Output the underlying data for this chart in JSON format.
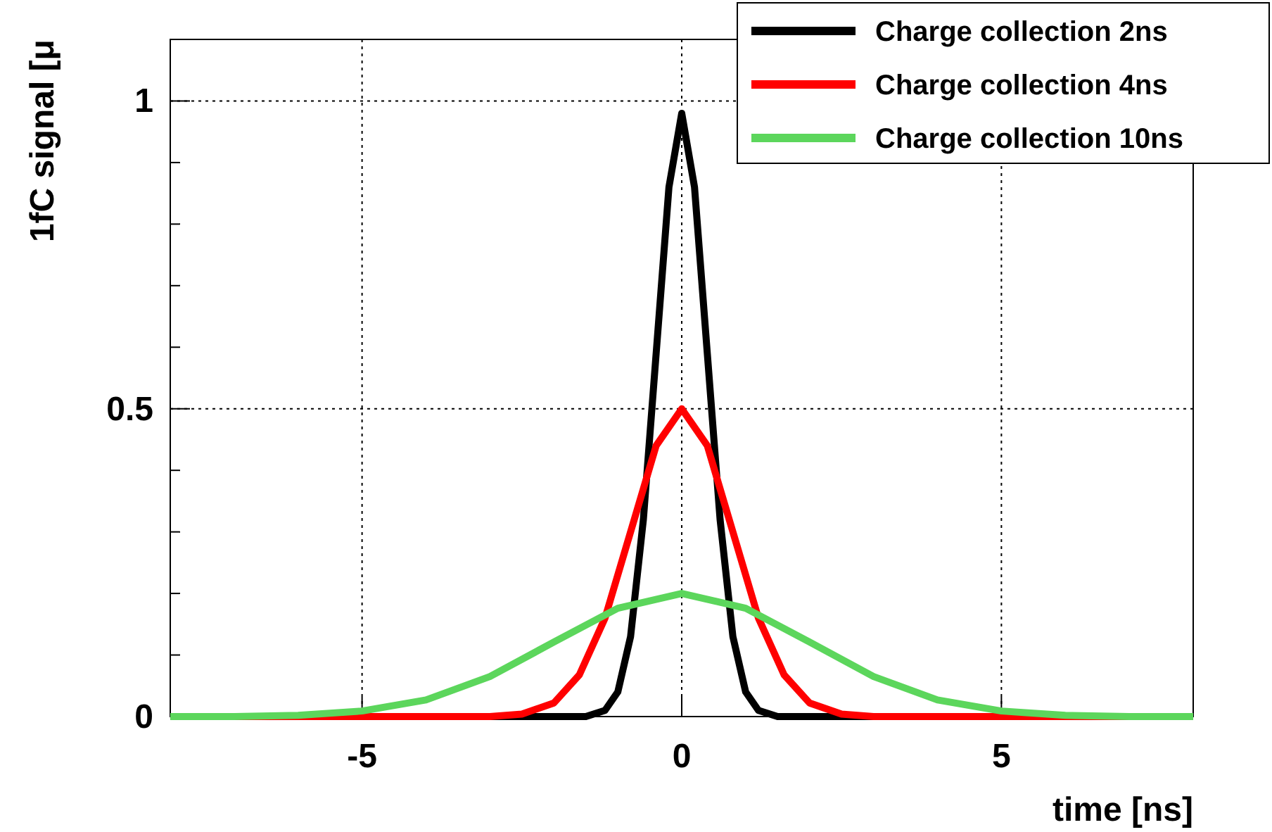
{
  "chart_data": {
    "type": "line",
    "xlabel": "time [ns]",
    "ylabel": "1fC signal [μ",
    "xlim": [
      -8,
      8
    ],
    "ylim": [
      0,
      1.1
    ],
    "xticks": [
      -5,
      0,
      5
    ],
    "yticks": [
      0,
      {
        "value": 0.1,
        "label": null
      },
      {
        "value": 0.2,
        "label": null
      },
      {
        "value": 0.3,
        "label": null
      },
      {
        "value": 0.4,
        "label": null
      },
      0.5,
      {
        "value": 0.6,
        "label": null
      },
      {
        "value": 0.7,
        "label": null
      },
      {
        "value": 0.8,
        "label": null
      },
      {
        "value": 0.9,
        "label": null
      },
      1,
      {
        "value": 1.1,
        "label": null
      }
    ],
    "grid": true,
    "legend": "top right",
    "marker": "none",
    "line_style": "solid",
    "series": [
      {
        "name": "Charge collection 2ns",
        "color": "#000000",
        "x": [
          -8,
          -2,
          -1.5,
          -1.2,
          -1,
          -0.8,
          -0.6,
          -0.4,
          -0.2,
          0,
          0.2,
          0.4,
          0.6,
          0.8,
          1,
          1.2,
          1.5,
          2,
          8
        ],
        "values": [
          0,
          0,
          0,
          0.01,
          0.04,
          0.13,
          0.32,
          0.59,
          0.86,
          0.98,
          0.86,
          0.59,
          0.32,
          0.13,
          0.04,
          0.01,
          0,
          0,
          0
        ]
      },
      {
        "name": "Charge collection 4ns",
        "color": "#ff0000",
        "x": [
          -8,
          -3,
          -2.5,
          -2,
          -1.6,
          -1.2,
          -0.8,
          -0.4,
          0,
          0.4,
          0.8,
          1.2,
          1.6,
          2,
          2.5,
          3,
          8
        ],
        "values": [
          0,
          0,
          0.004,
          0.022,
          0.068,
          0.16,
          0.3,
          0.44,
          0.5,
          0.44,
          0.3,
          0.16,
          0.068,
          0.022,
          0.004,
          0,
          0
        ]
      },
      {
        "name": "Charge collection 10ns",
        "color": "#5cd65c",
        "x": [
          -8,
          -7,
          -6,
          -5,
          -4,
          -3,
          -2,
          -1,
          0,
          1,
          2,
          3,
          4,
          5,
          6,
          7,
          8
        ],
        "values": [
          0,
          0,
          0.002,
          0.009,
          0.027,
          0.065,
          0.121,
          0.176,
          0.2,
          0.176,
          0.121,
          0.065,
          0.027,
          0.009,
          0.002,
          0,
          0
        ]
      }
    ]
  }
}
